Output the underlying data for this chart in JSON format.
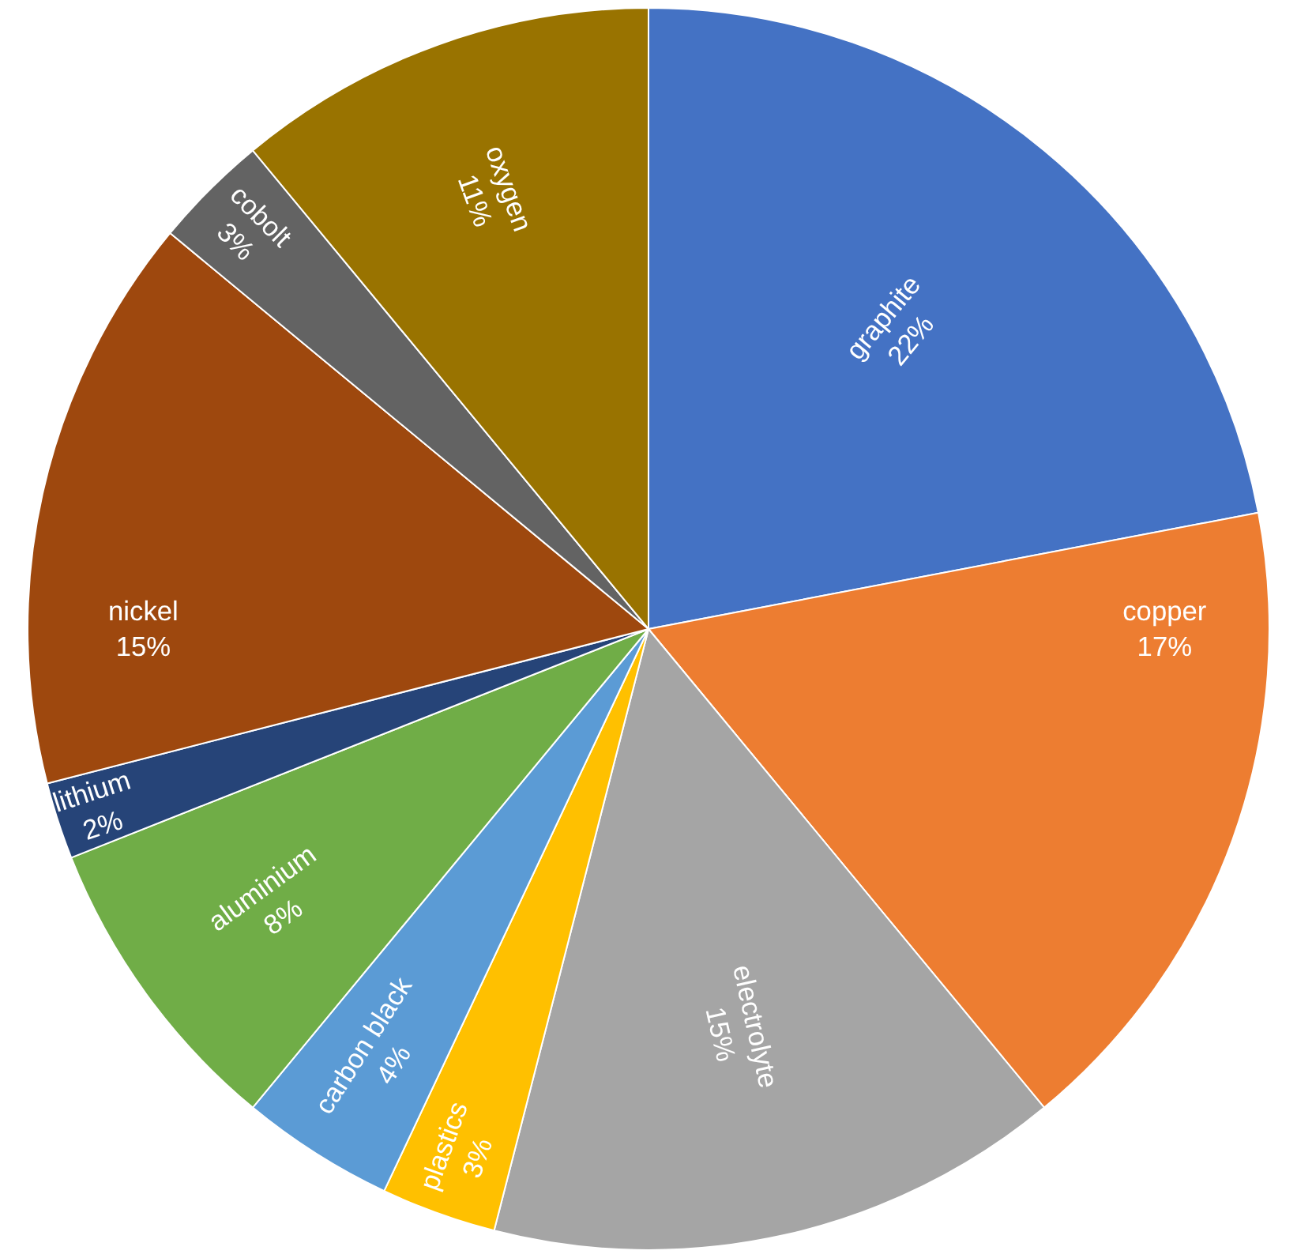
{
  "chart_data": {
    "type": "pie",
    "categories": [
      "graphite",
      "copper",
      "electrolyte",
      "plastics",
      "carbon black",
      "aluminium",
      "lithium",
      "nickel",
      "cobolt",
      "oxygen"
    ],
    "values": [
      22,
      17,
      15,
      3,
      4,
      8,
      2,
      15,
      3,
      11
    ],
    "value_labels": [
      "22%",
      "17%",
      "15%",
      "3%",
      "4%",
      "8%",
      "2%",
      "15%",
      "3%",
      "11%"
    ],
    "colors": [
      "#4472c4",
      "#ed7d31",
      "#a5a5a5",
      "#ffc000",
      "#5b9bd5",
      "#70ad47",
      "#264478",
      "#9e480e",
      "#636363",
      "#997300"
    ],
    "legend": false
  }
}
